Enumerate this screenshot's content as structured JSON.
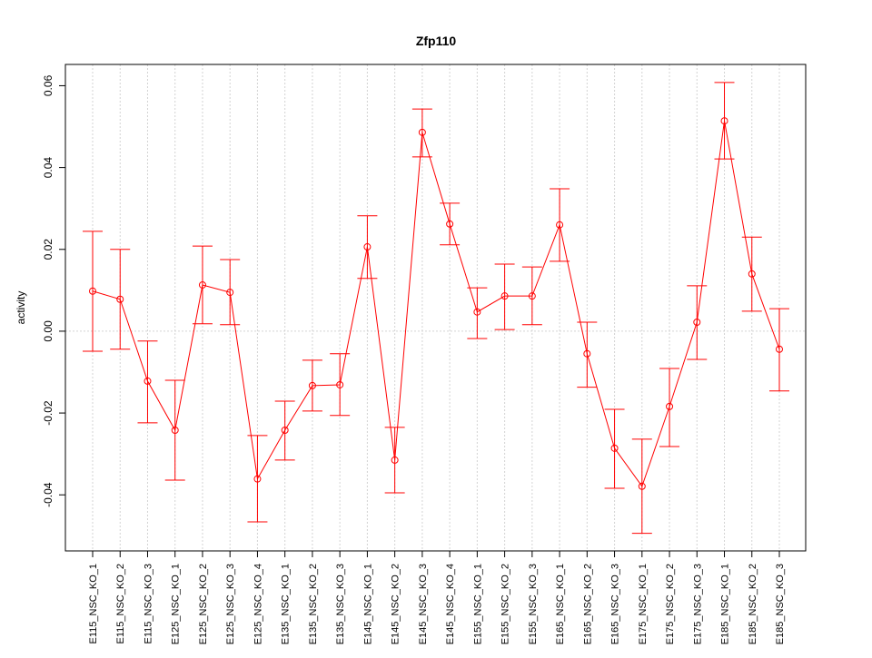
{
  "chart_data": {
    "type": "line",
    "title": "Zfp110",
    "xlabel": "",
    "ylabel": "activity",
    "ylim": [
      -0.0537,
      0.0652
    ],
    "yticks": [
      -0.04,
      -0.02,
      0.0,
      0.02,
      0.04,
      0.06
    ],
    "ytick_labels": [
      "-0.04",
      "-0.02",
      "0.00",
      "0.02",
      "0.04",
      "0.06"
    ],
    "grid": true,
    "color": "#ff0000",
    "categories": [
      "E115_NSC_KO_1",
      "E115_NSC_KO_2",
      "E115_NSC_KO_3",
      "E125_NSC_KO_1",
      "E125_NSC_KO_2",
      "E125_NSC_KO_3",
      "E125_NSC_KO_4",
      "E135_NSC_KO_1",
      "E135_NSC_KO_2",
      "E135_NSC_KO_3",
      "E145_NSC_KO_1",
      "E145_NSC_KO_2",
      "E145_NSC_KO_3",
      "E145_NSC_KO_4",
      "E155_NSC_KO_1",
      "E155_NSC_KO_2",
      "E155_NSC_KO_3",
      "E165_NSC_KO_1",
      "E165_NSC_KO_2",
      "E165_NSC_KO_3",
      "E175_NSC_KO_1",
      "E175_NSC_KO_2",
      "E175_NSC_KO_3",
      "E185_NSC_KO_1",
      "E185_NSC_KO_2",
      "E185_NSC_KO_3"
    ],
    "values": [
      0.0098,
      0.0078,
      -0.0122,
      -0.0242,
      0.0113,
      0.0095,
      -0.0361,
      -0.0242,
      -0.0133,
      -0.0131,
      0.0206,
      -0.0315,
      0.0486,
      0.0262,
      0.0047,
      0.0086,
      0.0086,
      0.026,
      -0.0055,
      -0.0286,
      -0.0379,
      -0.0184,
      0.0022,
      0.0514,
      0.014,
      -0.0044
    ],
    "upper": [
      0.0244,
      0.02,
      -0.0024,
      -0.012,
      0.0208,
      0.0175,
      -0.0255,
      -0.0171,
      -0.0071,
      -0.0055,
      0.0282,
      -0.0235,
      0.0543,
      0.0313,
      0.0106,
      0.0164,
      0.0157,
      0.0348,
      0.0022,
      -0.0191,
      -0.0264,
      -0.0091,
      0.0111,
      0.0608,
      0.023,
      0.0055
    ],
    "lower": [
      -0.0049,
      -0.0044,
      -0.0224,
      -0.0364,
      0.0018,
      0.0016,
      -0.0466,
      -0.0315,
      -0.0195,
      -0.0206,
      0.0129,
      -0.0395,
      0.0426,
      0.0211,
      -0.0018,
      0.0004,
      0.0016,
      0.0171,
      -0.0137,
      -0.0384,
      -0.0494,
      -0.0282,
      -0.0069,
      0.0421,
      0.0049,
      -0.0146
    ]
  }
}
